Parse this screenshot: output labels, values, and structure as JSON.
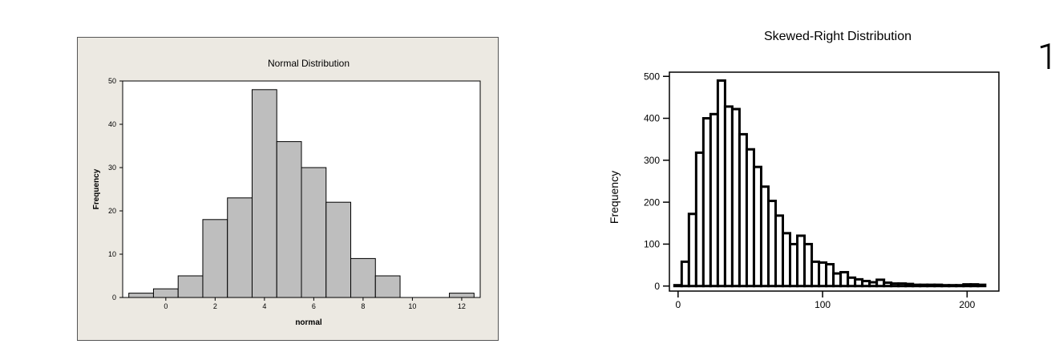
{
  "chart_data": [
    {
      "type": "bar",
      "title": "Normal Distribution",
      "xlabel": "normal",
      "ylabel": "Frequency",
      "xlim": [
        -1.75,
        12.75
      ],
      "ylim": [
        0,
        50
      ],
      "bin_width": 1,
      "bin_centers": [
        -1,
        0,
        1,
        2,
        3,
        4,
        5,
        6,
        7,
        8,
        9,
        10,
        11,
        12
      ],
      "values": [
        1,
        2,
        5,
        18,
        23,
        48,
        36,
        30,
        22,
        9,
        5,
        0,
        0,
        1
      ],
      "xticks": [
        "0",
        "2",
        "4",
        "6",
        "8",
        "10",
        "12"
      ],
      "yticks": [
        "0",
        "10",
        "20",
        "30",
        "40",
        "50"
      ],
      "bar_color": "#bebebe",
      "background": "#ece9e2"
    },
    {
      "type": "bar",
      "title": "Skewed-Right Distribution",
      "xlabel": "",
      "ylabel": "Frequency",
      "xlim": [
        -6,
        222
      ],
      "ylim": [
        -12,
        510
      ],
      "bin_width": 5,
      "bin_centers": [
        0,
        5,
        10,
        15,
        20,
        25,
        30,
        35,
        40,
        45,
        50,
        55,
        60,
        65,
        70,
        75,
        80,
        85,
        90,
        95,
        100,
        105,
        110,
        115,
        120,
        125,
        130,
        135,
        140,
        145,
        150,
        155,
        160,
        165,
        170,
        175,
        180,
        185,
        190,
        195,
        200,
        205,
        210
      ],
      "values": [
        2,
        58,
        172,
        318,
        400,
        410,
        490,
        428,
        422,
        362,
        326,
        284,
        237,
        203,
        168,
        126,
        100,
        120,
        100,
        58,
        56,
        52,
        30,
        33,
        20,
        16,
        12,
        9,
        15,
        8,
        6,
        6,
        5,
        3,
        3,
        3,
        3,
        2,
        2,
        2,
        4,
        4,
        3
      ],
      "xticks": [
        "0",
        "100",
        "200"
      ],
      "yticks": [
        "0",
        "100",
        "200",
        "300",
        "400",
        "500"
      ],
      "bar_color": "#ffffff",
      "bar_stroke": "#000000"
    }
  ]
}
